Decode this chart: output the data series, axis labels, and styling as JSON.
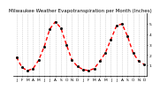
{
  "title": "Milwaukee Weather Evapotranspiration per Month (Inches)",
  "months": [
    "J",
    "F",
    "M",
    "A",
    "M",
    "J",
    "J",
    "A",
    "S",
    "O",
    "N",
    "D",
    "J",
    "F",
    "M",
    "A",
    "M",
    "J",
    "J",
    "A",
    "S",
    "O",
    "N",
    "D"
  ],
  "values": [
    1.8,
    0.8,
    0.5,
    0.7,
    1.5,
    2.8,
    4.5,
    5.2,
    4.6,
    3.0,
    1.5,
    0.9,
    0.6,
    0.5,
    0.7,
    1.4,
    2.2,
    3.5,
    4.8,
    5.0,
    3.8,
    2.2,
    1.4,
    1.1
  ],
  "ylim": [
    0,
    6
  ],
  "yticks": [
    1,
    2,
    3,
    4,
    5
  ],
  "line_color": "#ff0000",
  "marker_color": "#000000",
  "grid_color": "#bbbbbb",
  "bg_color": "#ffffff",
  "title_fontsize": 4.0,
  "tick_fontsize": 3.2
}
